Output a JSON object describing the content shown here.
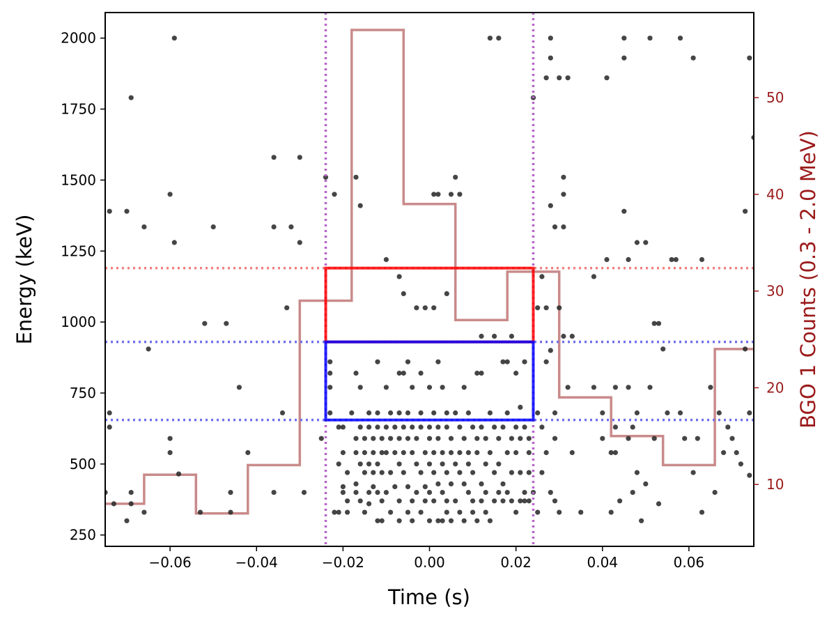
{
  "chart_data": {
    "type": "scatter",
    "xlabel": "Time (s)",
    "ylabel": "Energy (keV)",
    "y2label": "BGO 1 Counts (0.3 - 2.0 MeV)",
    "xlim": [
      -0.075,
      0.075
    ],
    "ylim": [
      210,
      2090
    ],
    "y2lim": [
      3.6,
      58.8
    ],
    "xticks": [
      -0.06,
      -0.04,
      -0.02,
      0.0,
      0.02,
      0.04,
      0.06
    ],
    "xtick_labels": [
      "−0.06",
      "−0.04",
      "−0.02",
      "0.00",
      "0.02",
      "0.04",
      "0.06"
    ],
    "yticks": [
      250,
      500,
      750,
      1000,
      1250,
      1500,
      1750,
      2000
    ],
    "ytick_labels": [
      "250",
      "500",
      "750",
      "1000",
      "1250",
      "1500",
      "1750",
      "2000"
    ],
    "y2ticks": [
      10,
      20,
      30,
      40,
      50
    ],
    "y2tick_labels": [
      "10",
      "20",
      "30",
      "40",
      "50"
    ],
    "colors": {
      "points": "#2b2b2b",
      "histogram": "#c98a8a",
      "red": "#ff0000",
      "blue": "#0000ff",
      "vline": "#b565c8",
      "hline_red": "#f08080",
      "hline_blue": "#7070ee",
      "y2": "#9b1a1a"
    },
    "vlines": [
      -0.024,
      0.024
    ],
    "hlines": [
      {
        "y": 1190,
        "color": "hline_red"
      },
      {
        "y": 930,
        "color": "hline_blue"
      },
      {
        "y": 655,
        "color": "hline_blue"
      }
    ],
    "boxes": [
      {
        "name": "red-selection-box",
        "x0": -0.024,
        "x1": 0.024,
        "y0": 930,
        "y1": 1190,
        "color": "red"
      },
      {
        "name": "blue-selection-box",
        "x0": -0.024,
        "x1": 0.024,
        "y0": 655,
        "y1": 930,
        "color": "blue"
      }
    ],
    "histogram": {
      "name": "BGO 1 counts",
      "edges": [
        -0.078,
        -0.066,
        -0.054,
        -0.042,
        -0.03,
        -0.018,
        -0.006,
        0.006,
        0.018,
        0.03,
        0.042,
        0.054,
        0.066,
        0.078
      ],
      "counts": [
        8,
        11,
        7,
        12,
        29,
        57,
        39,
        27,
        32,
        19,
        15,
        12,
        24
      ]
    },
    "points": [
      [
        -0.075,
        400
      ],
      [
        -0.074,
        1390
      ],
      [
        -0.074,
        680
      ],
      [
        -0.074,
        630
      ],
      [
        -0.073,
        360
      ],
      [
        -0.07,
        1390
      ],
      [
        -0.07,
        300
      ],
      [
        -0.069,
        1790
      ],
      [
        -0.069,
        400
      ],
      [
        -0.069,
        360
      ],
      [
        -0.066,
        1335
      ],
      [
        -0.066,
        330
      ],
      [
        -0.065,
        905
      ],
      [
        -0.06,
        1450
      ],
      [
        -0.06,
        590
      ],
      [
        -0.06,
        540
      ],
      [
        -0.059,
        1280
      ],
      [
        -0.059,
        2000
      ],
      [
        -0.058,
        465
      ],
      [
        -0.053,
        330
      ],
      [
        -0.052,
        995
      ],
      [
        -0.05,
        1335
      ],
      [
        -0.047,
        995
      ],
      [
        -0.046,
        400
      ],
      [
        -0.046,
        330
      ],
      [
        -0.044,
        770
      ],
      [
        -0.042,
        540
      ],
      [
        -0.036,
        1580
      ],
      [
        -0.036,
        1335
      ],
      [
        -0.036,
        400
      ],
      [
        -0.034,
        680
      ],
      [
        -0.033,
        1050
      ],
      [
        -0.032,
        1335
      ],
      [
        -0.03,
        1580
      ],
      [
        -0.03,
        1280
      ],
      [
        -0.029,
        400
      ],
      [
        -0.025,
        590
      ],
      [
        -0.024,
        1510
      ],
      [
        -0.023,
        860
      ],
      [
        -0.023,
        820
      ],
      [
        -0.023,
        770
      ],
      [
        -0.023,
        680
      ],
      [
        -0.022,
        1450
      ],
      [
        -0.022,
        330
      ],
      [
        -0.021,
        630
      ],
      [
        -0.021,
        500
      ],
      [
        -0.021,
        330
      ],
      [
        -0.02,
        630
      ],
      [
        -0.02,
        540
      ],
      [
        -0.02,
        420
      ],
      [
        -0.02,
        400
      ],
      [
        -0.019,
        470
      ],
      [
        -0.019,
        370
      ],
      [
        -0.019,
        330
      ],
      [
        -0.018,
        680
      ],
      [
        -0.017,
        1510
      ],
      [
        -0.017,
        820
      ],
      [
        -0.017,
        590
      ],
      [
        -0.017,
        540
      ],
      [
        -0.017,
        430
      ],
      [
        -0.017,
        400
      ],
      [
        -0.016,
        1410
      ],
      [
        -0.016,
        770
      ],
      [
        -0.016,
        630
      ],
      [
        -0.016,
        500
      ],
      [
        -0.016,
        370
      ],
      [
        -0.015,
        590
      ],
      [
        -0.015,
        540
      ],
      [
        -0.015,
        470
      ],
      [
        -0.015,
        330
      ],
      [
        -0.014,
        680
      ],
      [
        -0.014,
        630
      ],
      [
        -0.014,
        500
      ],
      [
        -0.014,
        400
      ],
      [
        -0.014,
        360
      ],
      [
        -0.013,
        590
      ],
      [
        -0.013,
        540
      ],
      [
        -0.013,
        470
      ],
      [
        -0.013,
        420
      ],
      [
        -0.012,
        860
      ],
      [
        -0.012,
        680
      ],
      [
        -0.012,
        630
      ],
      [
        -0.012,
        500
      ],
      [
        -0.012,
        400
      ],
      [
        -0.012,
        300
      ],
      [
        -0.011,
        590
      ],
      [
        -0.011,
        540
      ],
      [
        -0.011,
        470
      ],
      [
        -0.011,
        370
      ],
      [
        -0.011,
        300
      ],
      [
        -0.01,
        1220
      ],
      [
        -0.01,
        770
      ],
      [
        -0.01,
        630
      ],
      [
        -0.01,
        540
      ],
      [
        -0.01,
        400
      ],
      [
        -0.009,
        680
      ],
      [
        -0.009,
        590
      ],
      [
        -0.009,
        470
      ],
      [
        -0.009,
        330
      ],
      [
        -0.008,
        630
      ],
      [
        -0.008,
        540
      ],
      [
        -0.008,
        420
      ],
      [
        -0.007,
        1160
      ],
      [
        -0.007,
        820
      ],
      [
        -0.007,
        680
      ],
      [
        -0.007,
        590
      ],
      [
        -0.007,
        500
      ],
      [
        -0.007,
        370
      ],
      [
        -0.007,
        300
      ],
      [
        -0.006,
        1100
      ],
      [
        -0.006,
        820
      ],
      [
        -0.006,
        630
      ],
      [
        -0.006,
        540
      ],
      [
        -0.006,
        470
      ],
      [
        -0.005,
        860
      ],
      [
        -0.005,
        680
      ],
      [
        -0.005,
        590
      ],
      [
        -0.005,
        420
      ],
      [
        -0.005,
        330
      ],
      [
        -0.004,
        770
      ],
      [
        -0.004,
        630
      ],
      [
        -0.004,
        540
      ],
      [
        -0.004,
        370
      ],
      [
        -0.004,
        300
      ],
      [
        -0.003,
        1050
      ],
      [
        -0.003,
        590
      ],
      [
        -0.003,
        500
      ],
      [
        -0.003,
        400
      ],
      [
        -0.002,
        820
      ],
      [
        -0.002,
        680
      ],
      [
        -0.002,
        630
      ],
      [
        -0.002,
        470
      ],
      [
        -0.002,
        330
      ],
      [
        -0.001,
        1050
      ],
      [
        -0.001,
        540
      ],
      [
        -0.001,
        420
      ],
      [
        -0.001,
        370
      ],
      [
        0.0,
        770
      ],
      [
        0.0,
        630
      ],
      [
        0.0,
        590
      ],
      [
        0.0,
        500
      ],
      [
        0.0,
        400
      ],
      [
        0.0,
        300
      ],
      [
        0.001,
        1450
      ],
      [
        0.001,
        1050
      ],
      [
        0.001,
        680
      ],
      [
        0.001,
        540
      ],
      [
        0.001,
        470
      ],
      [
        0.001,
        370
      ],
      [
        0.002,
        1450
      ],
      [
        0.002,
        860
      ],
      [
        0.002,
        630
      ],
      [
        0.002,
        590
      ],
      [
        0.002,
        430
      ],
      [
        0.002,
        300
      ],
      [
        0.003,
        770
      ],
      [
        0.003,
        540
      ],
      [
        0.003,
        500
      ],
      [
        0.003,
        400
      ],
      [
        0.003,
        300
      ],
      [
        0.004,
        1100
      ],
      [
        0.004,
        680
      ],
      [
        0.004,
        630
      ],
      [
        0.004,
        470
      ],
      [
        0.004,
        370
      ],
      [
        0.004,
        330
      ],
      [
        0.005,
        1450
      ],
      [
        0.005,
        590
      ],
      [
        0.005,
        540
      ],
      [
        0.005,
        430
      ],
      [
        0.005,
        300
      ],
      [
        0.006,
        1510
      ],
      [
        0.006,
        680
      ],
      [
        0.006,
        500
      ],
      [
        0.006,
        370
      ],
      [
        0.007,
        1450
      ],
      [
        0.007,
        630
      ],
      [
        0.007,
        540
      ],
      [
        0.007,
        470
      ],
      [
        0.007,
        330
      ],
      [
        0.008,
        770
      ],
      [
        0.008,
        590
      ],
      [
        0.008,
        430
      ],
      [
        0.008,
        300
      ],
      [
        0.009,
        680
      ],
      [
        0.009,
        540
      ],
      [
        0.009,
        500
      ],
      [
        0.009,
        400
      ],
      [
        0.01,
        630
      ],
      [
        0.01,
        470
      ],
      [
        0.01,
        370
      ],
      [
        0.01,
        330
      ],
      [
        0.011,
        820
      ],
      [
        0.011,
        590
      ],
      [
        0.011,
        540
      ],
      [
        0.011,
        300
      ],
      [
        0.012,
        950
      ],
      [
        0.012,
        820
      ],
      [
        0.012,
        630
      ],
      [
        0.012,
        430
      ],
      [
        0.012,
        370
      ],
      [
        0.013,
        590
      ],
      [
        0.013,
        500
      ],
      [
        0.013,
        400
      ],
      [
        0.013,
        330
      ],
      [
        0.014,
        2000
      ],
      [
        0.014,
        680
      ],
      [
        0.014,
        540
      ],
      [
        0.014,
        300
      ],
      [
        0.015,
        950
      ],
      [
        0.015,
        630
      ],
      [
        0.015,
        470
      ],
      [
        0.015,
        370
      ],
      [
        0.016,
        2000
      ],
      [
        0.016,
        590
      ],
      [
        0.016,
        500
      ],
      [
        0.016,
        400
      ],
      [
        0.017,
        860
      ],
      [
        0.017,
        630
      ],
      [
        0.017,
        430
      ],
      [
        0.017,
        370
      ],
      [
        0.018,
        860
      ],
      [
        0.018,
        680
      ],
      [
        0.018,
        540
      ],
      [
        0.018,
        400
      ],
      [
        0.019,
        950
      ],
      [
        0.019,
        590
      ],
      [
        0.019,
        470
      ],
      [
        0.019,
        370
      ],
      [
        0.02,
        820
      ],
      [
        0.02,
        630
      ],
      [
        0.02,
        540
      ],
      [
        0.02,
        330
      ],
      [
        0.021,
        700
      ],
      [
        0.021,
        590
      ],
      [
        0.021,
        470
      ],
      [
        0.021,
        370
      ],
      [
        0.022,
        860
      ],
      [
        0.022,
        630
      ],
      [
        0.022,
        400
      ],
      [
        0.022,
        370
      ],
      [
        0.023,
        590
      ],
      [
        0.023,
        540
      ],
      [
        0.023,
        470
      ],
      [
        0.023,
        370
      ],
      [
        0.024,
        1790
      ],
      [
        0.024,
        400
      ],
      [
        0.025,
        1050
      ],
      [
        0.025,
        680
      ],
      [
        0.025,
        330
      ],
      [
        0.026,
        1160
      ],
      [
        0.026,
        630
      ],
      [
        0.026,
        470
      ],
      [
        0.027,
        1860
      ],
      [
        0.027,
        1050
      ],
      [
        0.027,
        860
      ],
      [
        0.027,
        540
      ],
      [
        0.028,
        2000
      ],
      [
        0.028,
        1930
      ],
      [
        0.028,
        1410
      ],
      [
        0.028,
        900
      ],
      [
        0.028,
        400
      ],
      [
        0.029,
        1335
      ],
      [
        0.029,
        680
      ],
      [
        0.029,
        590
      ],
      [
        0.029,
        370
      ],
      [
        0.03,
        1860
      ],
      [
        0.03,
        1050
      ],
      [
        0.03,
        330
      ],
      [
        0.031,
        1510
      ],
      [
        0.031,
        1450
      ],
      [
        0.031,
        1335
      ],
      [
        0.031,
        950
      ],
      [
        0.032,
        1860
      ],
      [
        0.032,
        770
      ],
      [
        0.033,
        950
      ],
      [
        0.033,
        540
      ],
      [
        0.035,
        330
      ],
      [
        0.038,
        1160
      ],
      [
        0.038,
        770
      ],
      [
        0.04,
        680
      ],
      [
        0.04,
        590
      ],
      [
        0.041,
        1860
      ],
      [
        0.041,
        1220
      ],
      [
        0.042,
        540
      ],
      [
        0.042,
        330
      ],
      [
        0.043,
        770
      ],
      [
        0.043,
        630
      ],
      [
        0.043,
        540
      ],
      [
        0.044,
        370
      ],
      [
        0.045,
        2000
      ],
      [
        0.045,
        1930
      ],
      [
        0.045,
        1390
      ],
      [
        0.046,
        1220
      ],
      [
        0.046,
        770
      ],
      [
        0.046,
        590
      ],
      [
        0.047,
        630
      ],
      [
        0.047,
        400
      ],
      [
        0.048,
        1280
      ],
      [
        0.048,
        680
      ],
      [
        0.048,
        470
      ],
      [
        0.049,
        300
      ],
      [
        0.05,
        1280
      ],
      [
        0.05,
        430
      ],
      [
        0.051,
        2000
      ],
      [
        0.051,
        770
      ],
      [
        0.052,
        995
      ],
      [
        0.052,
        590
      ],
      [
        0.053,
        995
      ],
      [
        0.053,
        360
      ],
      [
        0.054,
        905
      ],
      [
        0.055,
        680
      ],
      [
        0.056,
        1220
      ],
      [
        0.057,
        1220
      ],
      [
        0.058,
        2000
      ],
      [
        0.058,
        680
      ],
      [
        0.059,
        590
      ],
      [
        0.061,
        1930
      ],
      [
        0.061,
        470
      ],
      [
        0.062,
        590
      ],
      [
        0.063,
        1220
      ],
      [
        0.063,
        330
      ],
      [
        0.065,
        770
      ],
      [
        0.066,
        400
      ],
      [
        0.067,
        680
      ],
      [
        0.068,
        540
      ],
      [
        0.069,
        630
      ],
      [
        0.07,
        590
      ],
      [
        0.071,
        540
      ],
      [
        0.072,
        500
      ],
      [
        0.073,
        1390
      ],
      [
        0.073,
        905
      ],
      [
        0.074,
        1930
      ],
      [
        0.074,
        680
      ],
      [
        0.074,
        460
      ],
      [
        0.075,
        1650
      ]
    ]
  }
}
